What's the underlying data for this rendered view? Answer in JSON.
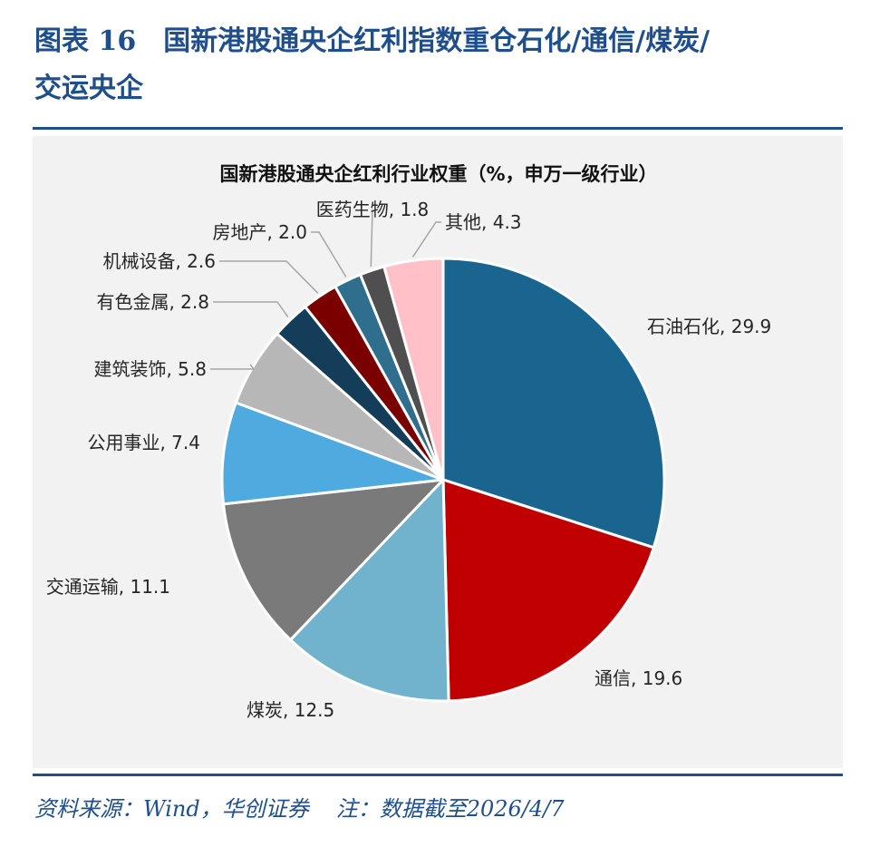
{
  "figure": {
    "title_line1": "图表 16　国新港股通央企红利指数重仓石化/通信/煤炭/",
    "title_line2": "交运央企",
    "source": "资料来源：Wind，华创证券",
    "note": "注：数据截至2026/4/7"
  },
  "chart_data": {
    "type": "pie",
    "title": "国新港股通央企红利行业权重（%，申万一级行业）",
    "slices": [
      {
        "label": "石油石化",
        "value": 29.9,
        "color": "#1a6590"
      },
      {
        "label": "通信",
        "value": 19.6,
        "color": "#c00000"
      },
      {
        "label": "煤炭",
        "value": 12.5,
        "color": "#71b2cd"
      },
      {
        "label": "交通运输",
        "value": 11.1,
        "color": "#7a7a7a"
      },
      {
        "label": "公用事业",
        "value": 7.4,
        "color": "#4eaadf"
      },
      {
        "label": "建筑装饰",
        "value": 5.8,
        "color": "#b7b7b7"
      },
      {
        "label": "有色金属",
        "value": 2.8,
        "color": "#143d59"
      },
      {
        "label": "机械设备",
        "value": 2.6,
        "color": "#7a0000"
      },
      {
        "label": "房地产",
        "value": 2.0,
        "color": "#2f6e8c"
      },
      {
        "label": "医药生物",
        "value": 1.8,
        "color": "#4f4f4f"
      },
      {
        "label": "其他",
        "value": 4.3,
        "color": "#ffc0c8"
      }
    ]
  }
}
